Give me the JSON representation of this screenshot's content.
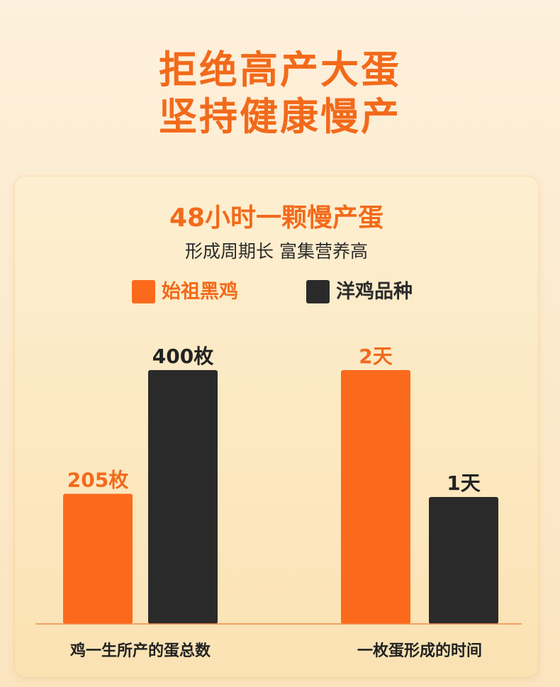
{
  "headline": [
    "拒绝高产大蛋",
    "坚持健康慢产"
  ],
  "card": {
    "title": "48小时一颗慢产蛋",
    "subtitle": "形成周期长 富集营养高"
  },
  "colors": {
    "accent": "#f26a1b",
    "dark": "#2b2b2b",
    "bar_orange": "#fb6a1c",
    "bar_dark": "#2a2a2a"
  },
  "chart_data": {
    "type": "bar",
    "categories": [
      "鸡一生所产的蛋总数",
      "一枚蛋形成的时间"
    ],
    "series": [
      {
        "name": "始祖黑鸡",
        "values": [
          205,
          2
        ],
        "labels": [
          "205枚",
          "2天"
        ]
      },
      {
        "name": "洋鸡品种",
        "values": [
          400,
          1
        ],
        "labels": [
          "400枚",
          "1天"
        ]
      }
    ],
    "legend": "top",
    "grid": false
  }
}
